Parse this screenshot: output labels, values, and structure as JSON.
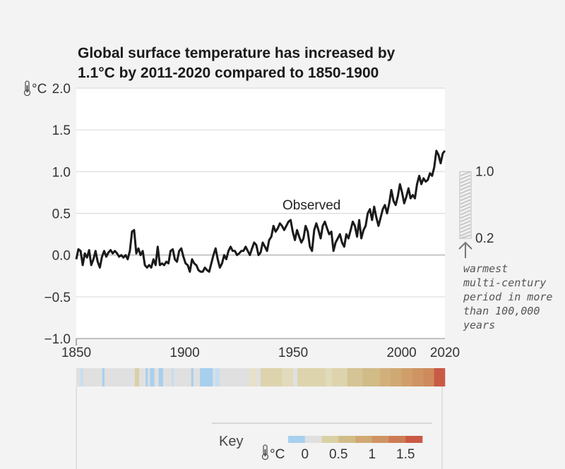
{
  "title_line1": "Global surface temperature has increased by",
  "title_line2": "1.1°C by 2011-2020 compared to 1850-1900",
  "unit": "°C",
  "series_label": "Observed",
  "range_box": {
    "top_label": "1.0",
    "bottom_label": "0.2",
    "low": 0.2,
    "high": 1.0,
    "note_lines": [
      "warmest",
      "multi-century",
      "period in more",
      "than 100,000",
      "years"
    ]
  },
  "key": {
    "title": "Key",
    "unit": "°C",
    "tick_labels": [
      "0",
      "0.5",
      "1",
      "1.5"
    ],
    "tick_values": [
      0,
      0.5,
      1,
      1.5
    ],
    "colors": [
      "#a7cfee",
      "#e0e0e0",
      "#d9d0a5",
      "#d1bc88",
      "#d0a873",
      "#cf9463",
      "#cd7b55",
      "#c95a45"
    ]
  },
  "chart_data": {
    "type": "line",
    "title": "Global surface temperature has increased by 1.1°C by 2011-2020 compared to 1850-1900",
    "ylabel": "°C",
    "xlim": [
      1850,
      2020
    ],
    "ylim": [
      -1.0,
      2.0
    ],
    "xticks": [
      1850,
      1900,
      1950,
      2000,
      2020
    ],
    "yticks": [
      -1.0,
      -0.5,
      0.0,
      0.5,
      1.0,
      1.5,
      2.0
    ],
    "ytick_labels": [
      "−1.0",
      "−0.5",
      "0.0",
      "0.5",
      "1.0",
      "1.5",
      "2.0"
    ],
    "grid": true,
    "series": [
      {
        "name": "Observed",
        "x_start": 1850,
        "values": [
          -0.05,
          0.07,
          0.05,
          -0.12,
          0.02,
          -0.03,
          0.06,
          -0.12,
          -0.05,
          0.05,
          -0.08,
          -0.15,
          -0.02,
          0.05,
          -0.02,
          0.03,
          0.06,
          0.02,
          0.05,
          0.02,
          -0.02,
          0.0,
          -0.03,
          0.0,
          -0.05,
          0.05,
          0.28,
          0.3,
          0.02,
          0.08,
          0.0,
          0.05,
          -0.12,
          -0.15,
          -0.12,
          -0.15,
          -0.05,
          -0.12,
          0.1,
          -0.12,
          -0.1,
          -0.12,
          -0.08,
          -0.1,
          0.05,
          0.07,
          -0.05,
          -0.08,
          0.05,
          0.08,
          -0.02,
          -0.1,
          -0.12,
          -0.2,
          -0.05,
          -0.1,
          -0.12,
          -0.18,
          -0.2,
          -0.2,
          -0.15,
          -0.18,
          -0.2,
          -0.1,
          0.0,
          0.08,
          -0.05,
          -0.15,
          -0.1,
          0.0,
          -0.05,
          0.05,
          0.1,
          0.05,
          0.05,
          0.0,
          0.02,
          0.05,
          0.05,
          0.1,
          0.05,
          0.0,
          0.08,
          0.15,
          0.12,
          0.0,
          0.03,
          0.15,
          0.1,
          0.05,
          0.18,
          0.22,
          0.35,
          0.28,
          0.32,
          0.38,
          0.35,
          0.3,
          0.35,
          0.4,
          0.42,
          0.28,
          0.18,
          0.3,
          0.22,
          0.15,
          0.2,
          0.35,
          0.28,
          0.1,
          0.05,
          0.3,
          0.38,
          0.3,
          0.2,
          0.35,
          0.4,
          0.32,
          0.25,
          0.28,
          0.05,
          0.15,
          0.2,
          0.25,
          0.15,
          0.1,
          0.25,
          0.2,
          0.3,
          0.4,
          0.35,
          0.22,
          0.42,
          0.2,
          0.3,
          0.35,
          0.5,
          0.55,
          0.42,
          0.58,
          0.45,
          0.35,
          0.45,
          0.55,
          0.6,
          0.5,
          0.62,
          0.78,
          0.65,
          0.6,
          0.7,
          0.85,
          0.75,
          0.62,
          0.7,
          0.8,
          0.68,
          0.72,
          0.68,
          0.85,
          0.95,
          0.85,
          0.92,
          0.88,
          0.9,
          0.98,
          0.95,
          1.05,
          1.25,
          1.2,
          1.1,
          1.22,
          1.25
        ]
      }
    ],
    "stripes": [
      {
        "from": 1850,
        "to": 1852,
        "color": "#e0e0e0"
      },
      {
        "from": 1852,
        "to": 1853,
        "color": "#c4ddf2"
      },
      {
        "from": 1853,
        "to": 1862,
        "color": "#e0e0e0"
      },
      {
        "from": 1862,
        "to": 1863,
        "color": "#a7cfee"
      },
      {
        "from": 1863,
        "to": 1877,
        "color": "#e0e0e0"
      },
      {
        "from": 1877,
        "to": 1879,
        "color": "#d9d0a5"
      },
      {
        "from": 1879,
        "to": 1882,
        "color": "#e0e0e0"
      },
      {
        "from": 1882,
        "to": 1883,
        "color": "#a7cfee"
      },
      {
        "from": 1883,
        "to": 1884,
        "color": "#e0e0e0"
      },
      {
        "from": 1884,
        "to": 1886,
        "color": "#a7cfee"
      },
      {
        "from": 1886,
        "to": 1888,
        "color": "#e0e0e0"
      },
      {
        "from": 1888,
        "to": 1890,
        "color": "#a7cfee"
      },
      {
        "from": 1890,
        "to": 1894,
        "color": "#e0e0e0"
      },
      {
        "from": 1894,
        "to": 1895,
        "color": "#c4ddf2"
      },
      {
        "from": 1895,
        "to": 1903,
        "color": "#e0e0e0"
      },
      {
        "from": 1903,
        "to": 1904,
        "color": "#a7cfee"
      },
      {
        "from": 1904,
        "to": 1907,
        "color": "#e0e0e0"
      },
      {
        "from": 1907,
        "to": 1913,
        "color": "#a7cfee"
      },
      {
        "from": 1913,
        "to": 1914,
        "color": "#e0e0e0"
      },
      {
        "from": 1914,
        "to": 1916,
        "color": "#c4ddf2"
      },
      {
        "from": 1916,
        "to": 1930,
        "color": "#e0e0e0"
      },
      {
        "from": 1930,
        "to": 1933,
        "color": "#e6e1c8"
      },
      {
        "from": 1933,
        "to": 1935,
        "color": "#e0e0e0"
      },
      {
        "from": 1935,
        "to": 1945,
        "color": "#ddd4ad"
      },
      {
        "from": 1945,
        "to": 1950,
        "color": "#e2dbbb"
      },
      {
        "from": 1950,
        "to": 1952,
        "color": "#e0e0e0"
      },
      {
        "from": 1952,
        "to": 1965,
        "color": "#ddd4ad"
      },
      {
        "from": 1965,
        "to": 1968,
        "color": "#e2dbbb"
      },
      {
        "from": 1968,
        "to": 1975,
        "color": "#ddd4ad"
      },
      {
        "from": 1975,
        "to": 1982,
        "color": "#d5c495"
      },
      {
        "from": 1982,
        "to": 1990,
        "color": "#d1bc88"
      },
      {
        "from": 1990,
        "to": 1995,
        "color": "#d1b07c"
      },
      {
        "from": 1995,
        "to": 2000,
        "color": "#d0a873"
      },
      {
        "from": 2000,
        "to": 2005,
        "color": "#cf9e6a"
      },
      {
        "from": 2005,
        "to": 2010,
        "color": "#cf9463"
      },
      {
        "from": 2010,
        "to": 2015,
        "color": "#ce8a5c"
      },
      {
        "from": 2015,
        "to": 2020,
        "color": "#c95a45"
      }
    ]
  }
}
